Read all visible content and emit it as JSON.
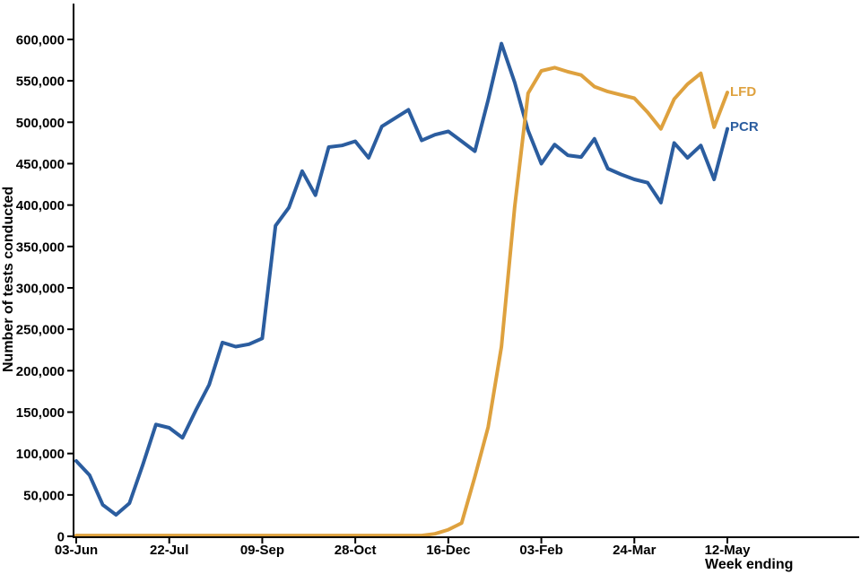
{
  "chart_data": {
    "type": "line",
    "title": "",
    "xlabel": "Week ending",
    "ylabel": "Number of tests conducted",
    "legend_position": "inline-right-of-lines",
    "grid": false,
    "x_unit": "week_index (weekly data, week 0 = 03-Jun, week 49 = 12-May)",
    "ylim": [
      0,
      620000
    ],
    "y_ticks": [
      0,
      50000,
      100000,
      150000,
      200000,
      250000,
      300000,
      350000,
      400000,
      450000,
      500000,
      550000,
      600000
    ],
    "x_ticks": [
      {
        "week": 0,
        "label": "03-Jun"
      },
      {
        "week": 7,
        "label": "22-Jul"
      },
      {
        "week": 14,
        "label": "09-Sep"
      },
      {
        "week": 21,
        "label": "28-Oct"
      },
      {
        "week": 28,
        "label": "16-Dec"
      },
      {
        "week": 35,
        "label": "03-Feb"
      },
      {
        "week": 42,
        "label": "24-Mar"
      },
      {
        "week": 49,
        "label": "12-May"
      }
    ],
    "series": [
      {
        "name": "PCR",
        "color": "#2B5D9F",
        "values": [
          91000,
          74000,
          38000,
          26000,
          40000,
          86000,
          135000,
          131000,
          119000,
          152000,
          183000,
          234000,
          229000,
          232000,
          239000,
          375000,
          397000,
          441000,
          412000,
          470000,
          472000,
          477000,
          457000,
          495000,
          505000,
          515000,
          478000,
          485000,
          489000,
          477000,
          465000,
          527000,
          595000,
          548000,
          490000,
          450000,
          473000,
          460000,
          458000,
          480000,
          444000,
          437000,
          431000,
          427000,
          403000,
          475000,
          457000,
          472000,
          431000,
          492000
        ]
      },
      {
        "name": "LFD",
        "color": "#DEA13E",
        "values": [
          1000,
          1000,
          1000,
          1000,
          1000,
          1000,
          1000,
          1000,
          1000,
          1000,
          1000,
          1000,
          1000,
          1000,
          1000,
          1000,
          1000,
          1000,
          1000,
          1000,
          1000,
          1000,
          1000,
          1000,
          1000,
          1000,
          1000,
          3000,
          8000,
          16000,
          72000,
          132000,
          229000,
          398000,
          535000,
          562000,
          566000,
          561000,
          557000,
          543000,
          537000,
          533000,
          529000,
          512000,
          492000,
          528000,
          546000,
          559000,
          494000,
          536000
        ]
      }
    ]
  },
  "labels": {
    "y_axis_title": "Number of tests conducted",
    "x_axis_title": "Week ending"
  },
  "style": {
    "axis_color": "#000000",
    "pcr_color": "#2B5D9F",
    "lfd_color": "#DEA13E",
    "background": "#ffffff"
  }
}
